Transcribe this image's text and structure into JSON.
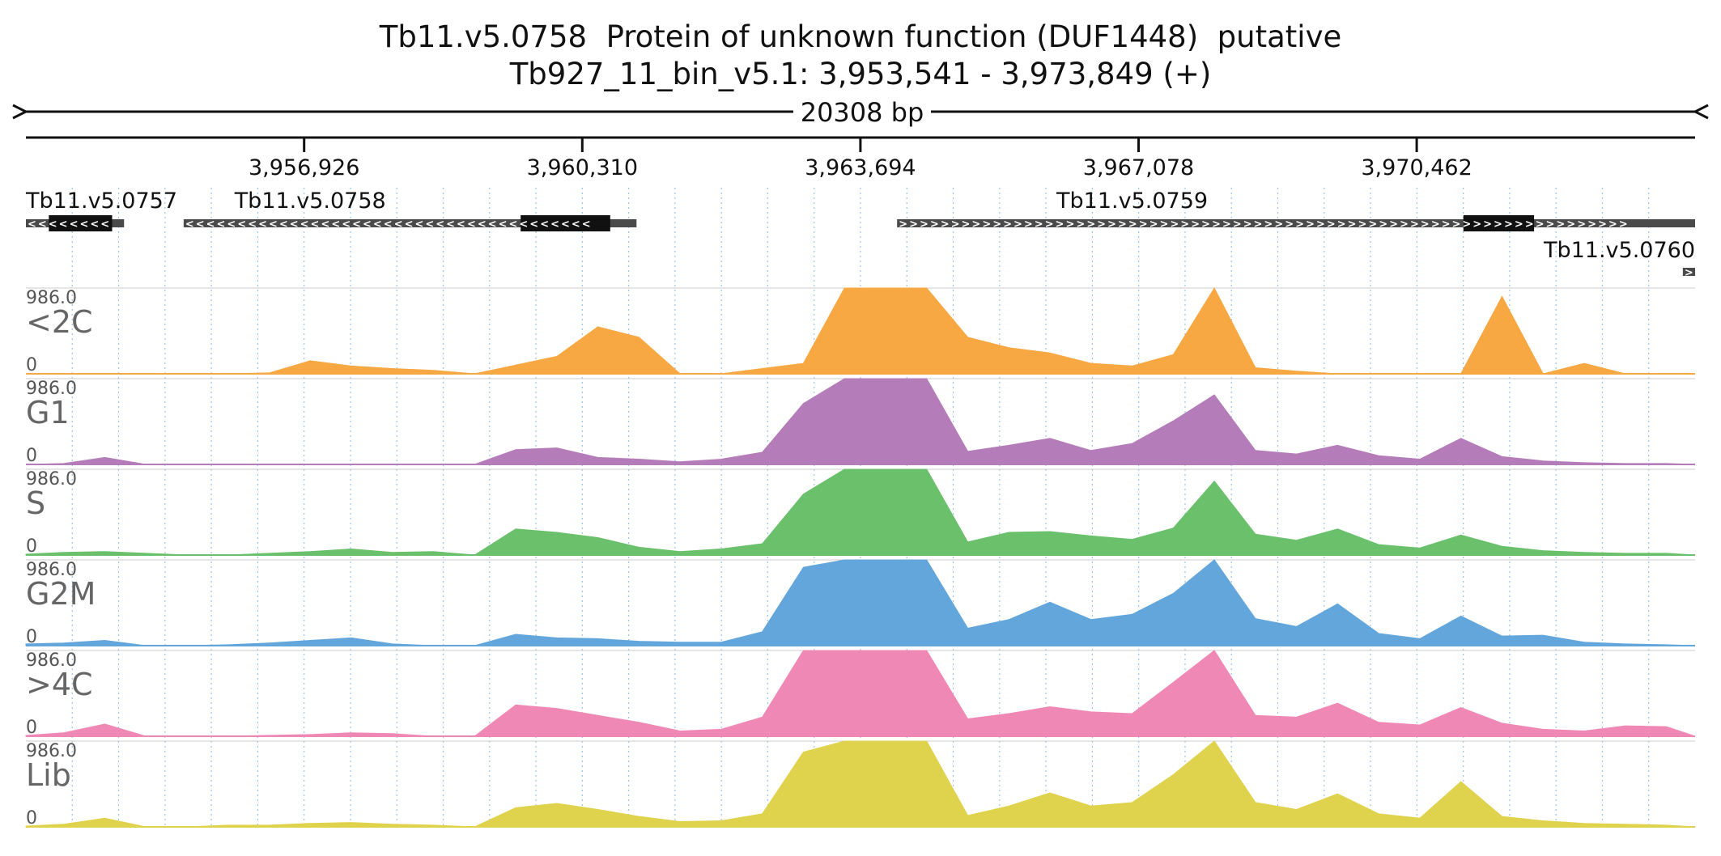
{
  "header": {
    "title": "Tb11.v5.0758  Protein of unknown function (DUF1448)  putative",
    "locus": "Tb927_11_bin_v5.1: 3,953,541 - 3,973,849 (+)",
    "span_label": "20308 bp"
  },
  "ruler": {
    "start": 3953541,
    "end": 3973849,
    "ticks": [
      {
        "pos": 3956926,
        "label": "3,956,926"
      },
      {
        "pos": 3960310,
        "label": "3,960,310"
      },
      {
        "pos": 3963694,
        "label": "3,963,694"
      },
      {
        "pos": 3967078,
        "label": "3,967,078"
      },
      {
        "pos": 3970462,
        "label": "3,970,462"
      }
    ]
  },
  "genes": [
    {
      "name": "Tb11.v5.0757",
      "strand": "-",
      "start": 3953541,
      "end": 3954735,
      "cds_start": 3953820,
      "cds_end": 3954590,
      "label_pos": 3953541,
      "label_row": 0
    },
    {
      "name": "Tb11.v5.0758",
      "strand": "-",
      "start": 3955460,
      "end": 3960970,
      "cds_start": 3959560,
      "cds_end": 3960650,
      "label_pos": 3957000,
      "label_row": 0
    },
    {
      "name": "Tb11.v5.0759",
      "strand": "+",
      "start": 3964140,
      "end": 3973849,
      "cds_start": 3971030,
      "cds_end": 3971890,
      "label_pos": 3967000,
      "label_row": 0
    },
    {
      "name": "Tb11.v5.0760",
      "strand": "+",
      "start": 3973700,
      "end": 3973849,
      "cds_start": 3973700,
      "cds_end": 3973849,
      "label_pos": 3973849,
      "label_row": 1
    }
  ],
  "tracks": [
    {
      "name": "<2C",
      "color": "#f8a843",
      "max_label": "986.0",
      "min_label": "0"
    },
    {
      "name": "G1",
      "color": "#b57cba",
      "max_label": "986.0",
      "min_label": "0"
    },
    {
      "name": "S",
      "color": "#6ac06b",
      "max_label": "986.0",
      "min_label": "0"
    },
    {
      "name": "G2M",
      "color": "#63a6db",
      "max_label": "986.0",
      "min_label": "0"
    },
    {
      "name": ">4C",
      "color": "#f088b6",
      "max_label": "986.0",
      "min_label": "0"
    },
    {
      "name": "Lib",
      "color": "#dfd24c",
      "max_label": "986.0",
      "min_label": "0"
    }
  ],
  "chart_data": {
    "type": "area",
    "xlim": [
      3953541,
      3973849
    ],
    "ylim": [
      0,
      986.0
    ],
    "grid": true,
    "positions": [
      3953541,
      3954000,
      3954500,
      3955000,
      3955500,
      3956000,
      3956500,
      3957000,
      3957500,
      3958000,
      3958500,
      3959000,
      3959500,
      3960000,
      3960500,
      3961000,
      3961500,
      3962000,
      3962500,
      3963000,
      3963500,
      3964000,
      3964500,
      3965000,
      3965500,
      3966000,
      3966500,
      3967000,
      3967500,
      3968000,
      3968500,
      3969000,
      3969500,
      3970000,
      3970500,
      3971000,
      3971500,
      3972000,
      3972500,
      3973000,
      3973500,
      3973849
    ],
    "series": [
      {
        "name": "<2C",
        "values": [
          0,
          0,
          0,
          0,
          0,
          0,
          10,
          150,
          90,
          60,
          40,
          0,
          100,
          200,
          540,
          420,
          0,
          0,
          60,
          120,
          986,
          986,
          986,
          420,
          300,
          240,
          120,
          90,
          220,
          986,
          70,
          30,
          0,
          0,
          0,
          0,
          890,
          0,
          120,
          0,
          0,
          0
        ]
      },
      {
        "name": "G1",
        "values": [
          0,
          10,
          80,
          0,
          0,
          0,
          0,
          0,
          0,
          0,
          0,
          0,
          170,
          190,
          80,
          60,
          30,
          60,
          140,
          700,
          986,
          986,
          986,
          150,
          220,
          300,
          160,
          240,
          500,
          800,
          160,
          120,
          220,
          100,
          60,
          300,
          90,
          40,
          20,
          10,
          10,
          0
        ]
      },
      {
        "name": "S",
        "values": [
          10,
          30,
          40,
          20,
          0,
          0,
          20,
          40,
          70,
          30,
          40,
          0,
          300,
          260,
          200,
          90,
          40,
          70,
          130,
          700,
          986,
          986,
          986,
          150,
          260,
          270,
          220,
          180,
          310,
          850,
          240,
          170,
          300,
          120,
          80,
          230,
          100,
          50,
          30,
          20,
          20,
          0
        ]
      },
      {
        "name": "G2M",
        "values": [
          20,
          30,
          60,
          0,
          0,
          10,
          30,
          60,
          90,
          20,
          0,
          0,
          130,
          90,
          80,
          50,
          40,
          40,
          160,
          900,
          986,
          986,
          986,
          200,
          300,
          500,
          300,
          360,
          600,
          986,
          310,
          220,
          480,
          140,
          80,
          340,
          110,
          120,
          40,
          20,
          10,
          0
        ]
      },
      {
        "name": ">4C",
        "values": [
          10,
          40,
          140,
          0,
          0,
          0,
          10,
          20,
          40,
          30,
          0,
          0,
          360,
          320,
          240,
          160,
          60,
          80,
          220,
          986,
          986,
          986,
          986,
          200,
          260,
          340,
          280,
          260,
          620,
          986,
          240,
          220,
          380,
          160,
          130,
          330,
          150,
          80,
          60,
          120,
          110,
          0
        ]
      },
      {
        "name": "Lib",
        "values": [
          10,
          30,
          100,
          0,
          0,
          20,
          20,
          40,
          50,
          30,
          20,
          0,
          220,
          270,
          200,
          120,
          60,
          70,
          150,
          860,
          986,
          986,
          986,
          130,
          240,
          390,
          240,
          280,
          600,
          986,
          280,
          200,
          380,
          150,
          100,
          520,
          120,
          70,
          40,
          30,
          20,
          0
        ]
      }
    ]
  }
}
